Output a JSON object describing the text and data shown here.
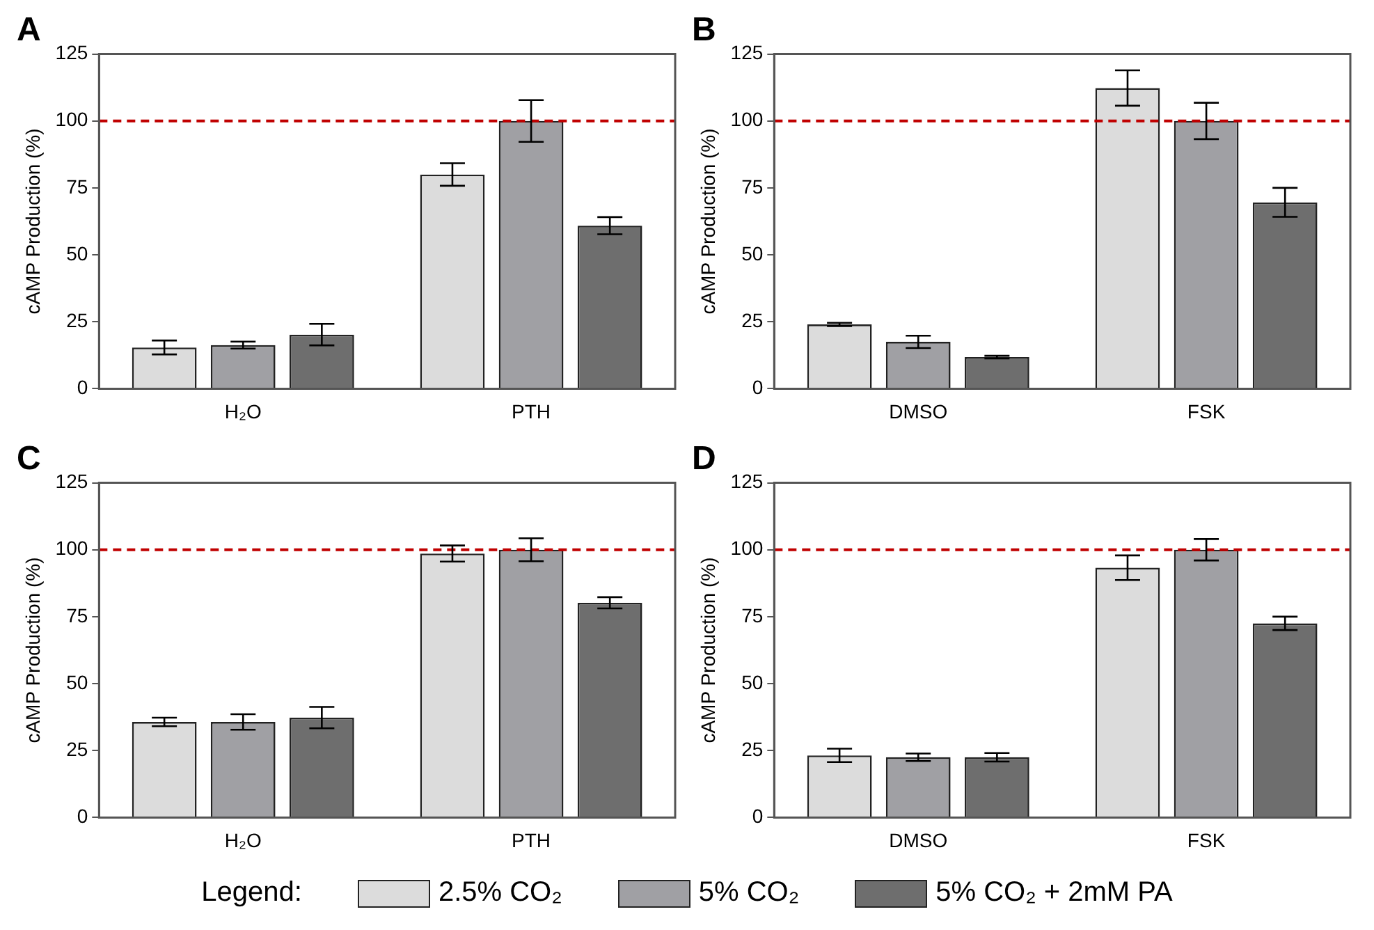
{
  "chart_data": [
    {
      "type": "bar",
      "title": "A",
      "ylabel": "cAMP Production (%)",
      "categories": [
        "H₂O",
        "PTH"
      ],
      "series": [
        {
          "name": "2.5% CO₂",
          "color": "#dcdcdc",
          "values": [
            15.4,
            80
          ],
          "errors": [
            2.6,
            4.2
          ]
        },
        {
          "name": "5% CO₂",
          "color": "#a0a0a4",
          "values": [
            16.3,
            100
          ],
          "errors": [
            1.3,
            7.8
          ]
        },
        {
          "name": "5% CO₂ + 2mM PA",
          "color": "#6e6e6e",
          "values": [
            20.2,
            60.9
          ],
          "errors": [
            4,
            3.2
          ]
        }
      ],
      "ylim": [
        0,
        125
      ],
      "yticks": [
        0,
        25,
        50,
        75,
        100,
        125
      ],
      "grid": false,
      "legend": "bottom",
      "legend_title": "Legend:",
      "ref_lines": [
        {
          "axis": "y",
          "value": 100,
          "color": "#c00000",
          "line_style": "dashed"
        }
      ]
    },
    {
      "type": "bar",
      "title": "B",
      "ylabel": "cAMP Production (%)",
      "categories": [
        "DMSO",
        "FSK"
      ],
      "series": [
        {
          "color": "#dcdcdc",
          "values": [
            24,
            112.3
          ],
          "errors": [
            0.6,
            6.6
          ]
        },
        {
          "color": "#a0a0a4",
          "values": [
            17.5,
            100
          ],
          "errors": [
            2.3,
            6.8
          ]
        },
        {
          "color": "#6e6e6e",
          "values": [
            11.8,
            69.6
          ],
          "errors": [
            0.5,
            5.4
          ]
        }
      ],
      "ylim": [
        0,
        125
      ],
      "yticks": [
        0,
        25,
        50,
        75,
        100,
        125
      ],
      "grid": false,
      "ref_lines": [
        {
          "axis": "y",
          "value": 100,
          "color": "#c00000",
          "line_style": "dashed"
        }
      ]
    },
    {
      "type": "bar",
      "title": "C",
      "ylabel": "cAMP Production (%)",
      "categories": [
        "H₂O",
        "PTH"
      ],
      "series": [
        {
          "color": "#dcdcdc",
          "values": [
            35.7,
            98.6
          ],
          "errors": [
            1.6,
            3
          ]
        },
        {
          "color": "#a0a0a4",
          "values": [
            35.7,
            100
          ],
          "errors": [
            2.9,
            4.3
          ]
        },
        {
          "color": "#6e6e6e",
          "values": [
            37.3,
            80.2
          ],
          "errors": [
            4,
            2.1
          ]
        }
      ],
      "ylim": [
        0,
        125
      ],
      "yticks": [
        0,
        25,
        50,
        75,
        100,
        125
      ],
      "grid": false,
      "ref_lines": [
        {
          "axis": "y",
          "value": 100,
          "color": "#c00000",
          "line_style": "dashed"
        }
      ]
    },
    {
      "type": "bar",
      "title": "D",
      "ylabel": "cAMP Production (%)",
      "categories": [
        "DMSO",
        "FSK"
      ],
      "series": [
        {
          "color": "#dcdcdc",
          "values": [
            23.2,
            93.3
          ],
          "errors": [
            2.5,
            4.6
          ]
        },
        {
          "color": "#a0a0a4",
          "values": [
            22.5,
            100
          ],
          "errors": [
            1.4,
            4
          ]
        },
        {
          "color": "#6e6e6e",
          "values": [
            22.5,
            72.5
          ],
          "errors": [
            1.6,
            2.5
          ]
        }
      ],
      "ylim": [
        0,
        125
      ],
      "yticks": [
        0,
        25,
        50,
        75,
        100,
        125
      ],
      "grid": false,
      "ref_lines": [
        {
          "axis": "y",
          "value": 100,
          "color": "#c00000",
          "line_style": "dashed"
        }
      ]
    }
  ]
}
